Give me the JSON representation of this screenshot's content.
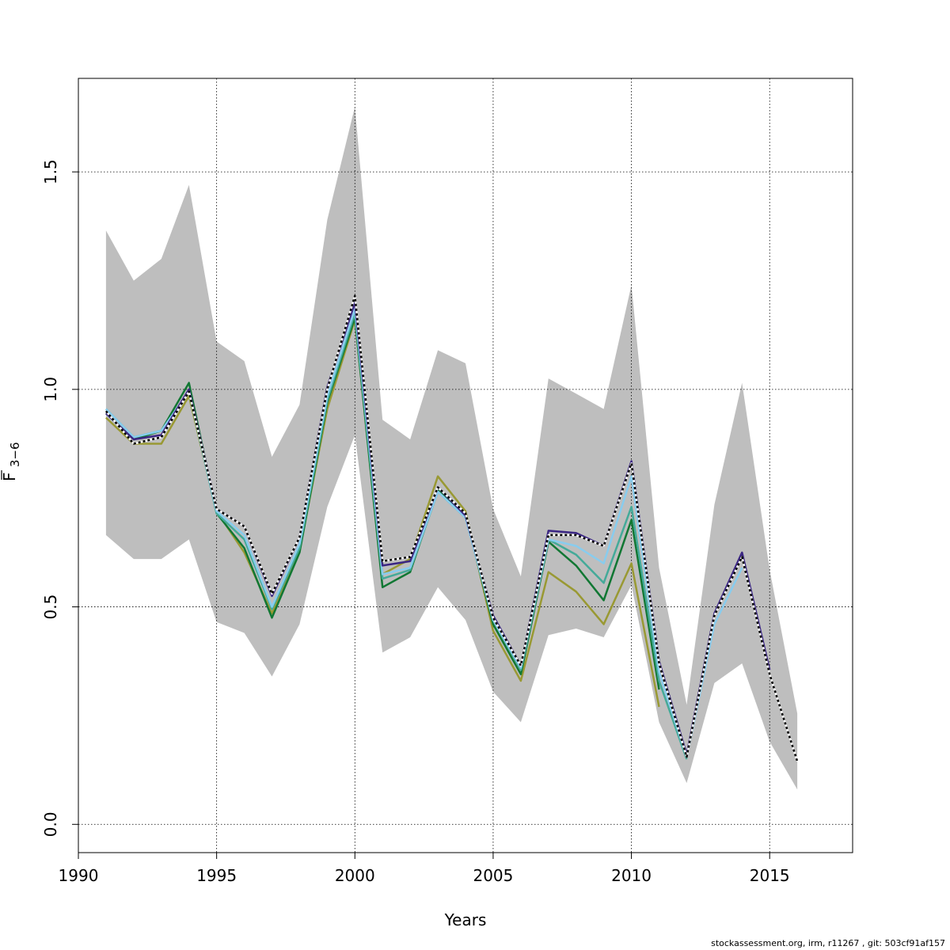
{
  "chart_data": {
    "type": "line",
    "xlabel": "Years",
    "ylabel": "F",
    "ylabel_subscript": "3−6",
    "xlim": [
      1990,
      2018
    ],
    "ylim": [
      -0.065,
      1.715
    ],
    "x_ticks": [
      1990,
      1995,
      2000,
      2005,
      2010,
      2015
    ],
    "y_ticks": [
      0.0,
      0.5,
      1.0,
      1.5
    ],
    "x_tick_labels": [
      "1990",
      "1995",
      "2000",
      "2005",
      "2010",
      "2015"
    ],
    "y_tick_labels": [
      "0.0",
      "0.5",
      "1.0",
      "1.5"
    ],
    "grid": true,
    "band_color": "#bebebe",
    "confidence_band": {
      "x": [
        1991,
        1992,
        1993,
        1994,
        1995,
        1996,
        1997,
        1998,
        1999,
        2000,
        2001,
        2002,
        2003,
        2004,
        2005,
        2006,
        2007,
        2008,
        2009,
        2010,
        2011,
        2012,
        2013,
        2014,
        2015,
        2016
      ],
      "lower": [
        0.665,
        0.61,
        0.61,
        0.655,
        0.465,
        0.44,
        0.34,
        0.46,
        0.73,
        0.895,
        0.395,
        0.43,
        0.545,
        0.47,
        0.305,
        0.235,
        0.435,
        0.45,
        0.43,
        0.55,
        0.235,
        0.095,
        0.325,
        0.37,
        0.19,
        0.08
      ],
      "upper": [
        1.365,
        1.25,
        1.3,
        1.47,
        1.11,
        1.065,
        0.845,
        0.965,
        1.39,
        1.65,
        0.93,
        0.885,
        1.09,
        1.06,
        0.725,
        0.57,
        1.025,
        0.99,
        0.955,
        1.24,
        0.59,
        0.275,
        0.735,
        1.015,
        0.585,
        0.255
      ]
    },
    "series": [
      {
        "color": "#000000",
        "dashed": true,
        "x": [
          1991,
          1992,
          1993,
          1994,
          1995,
          1996,
          1997,
          1998,
          1999,
          2000,
          2001,
          2002,
          2003,
          2004,
          2005,
          2006,
          2007,
          2008,
          2009,
          2010,
          2011,
          2012,
          2013,
          2014,
          2015,
          2016
        ],
        "values": [
          0.95,
          0.875,
          0.89,
          0.995,
          0.725,
          0.685,
          0.53,
          0.66,
          1.0,
          1.215,
          0.605,
          0.615,
          0.775,
          0.715,
          0.475,
          0.365,
          0.665,
          0.665,
          0.64,
          0.83,
          0.37,
          0.155,
          0.48,
          0.615,
          0.345,
          0.145
        ]
      },
      {
        "color": "#3b2683",
        "x": [
          1991,
          1992,
          1993,
          1994,
          1995,
          1996,
          1997,
          1998,
          1999,
          2000,
          2001,
          2002,
          2003,
          2004,
          2005,
          2006,
          2007,
          2008,
          2009,
          2010,
          2011,
          2012,
          2013,
          2014,
          2015
        ],
        "values": [
          0.945,
          0.885,
          0.895,
          1.0,
          0.725,
          0.685,
          0.525,
          0.66,
          1.005,
          1.2,
          0.595,
          0.605,
          0.775,
          0.71,
          0.48,
          0.365,
          0.675,
          0.67,
          0.64,
          0.835,
          0.375,
          0.16,
          0.485,
          0.625,
          0.355
        ]
      },
      {
        "color": "#88ccee",
        "x": [
          1991,
          1992,
          1993,
          1994,
          1995,
          1996,
          1997,
          1998,
          1999,
          2000,
          2001,
          2002,
          2003,
          2004,
          2005,
          2006,
          2007,
          2008,
          2009,
          2010,
          2011,
          2012,
          2013,
          2014
        ],
        "values": [
          0.955,
          0.89,
          0.905,
          0.995,
          0.72,
          0.665,
          0.5,
          0.645,
          0.985,
          1.185,
          0.575,
          0.59,
          0.765,
          0.705,
          0.47,
          0.36,
          0.655,
          0.64,
          0.6,
          0.8,
          0.35,
          0.155,
          0.46,
          0.59
        ]
      },
      {
        "color": "#44aa99",
        "x": [
          1991,
          1992,
          1993,
          1994,
          1995,
          1996,
          1997,
          1998,
          1999,
          2000,
          2001,
          2002,
          2003,
          2004,
          2005,
          2006,
          2007,
          2008,
          2009,
          2010,
          2011,
          2012
        ],
        "values": [
          0.955,
          0.89,
          0.905,
          0.995,
          0.715,
          0.655,
          0.495,
          0.635,
          0.975,
          1.175,
          0.565,
          0.585,
          0.765,
          0.705,
          0.47,
          0.355,
          0.655,
          0.62,
          0.555,
          0.73,
          0.33,
          0.15
        ]
      },
      {
        "color": "#117733",
        "x": [
          1991,
          1992,
          1993,
          1994,
          1995,
          1996,
          1997,
          1998,
          1999,
          2000,
          2001,
          2002,
          2003,
          2004,
          2005,
          2006,
          2007,
          2008,
          2009,
          2010,
          2011
        ],
        "values": [
          0.945,
          0.885,
          0.905,
          1.015,
          0.715,
          0.635,
          0.475,
          0.625,
          0.97,
          1.165,
          0.545,
          0.58,
          0.77,
          0.71,
          0.46,
          0.345,
          0.65,
          0.595,
          0.515,
          0.7,
          0.31
        ]
      },
      {
        "color": "#999933",
        "x": [
          1991,
          1992,
          1993,
          1994,
          1995,
          1996,
          1997,
          1998,
          1999,
          2000,
          2001,
          2002,
          2003,
          2004,
          2005,
          2006,
          2007,
          2008,
          2009,
          2010,
          2011
        ],
        "values": [
          0.935,
          0.875,
          0.875,
          0.985,
          0.72,
          0.625,
          0.485,
          0.63,
          0.955,
          1.16,
          0.575,
          0.61,
          0.8,
          0.72,
          0.445,
          0.33,
          0.58,
          0.535,
          0.46,
          0.6,
          0.27
        ]
      }
    ]
  },
  "footer": {
    "text": "stockassessment.org, irm, r11267 , git: 503cf91af157"
  }
}
